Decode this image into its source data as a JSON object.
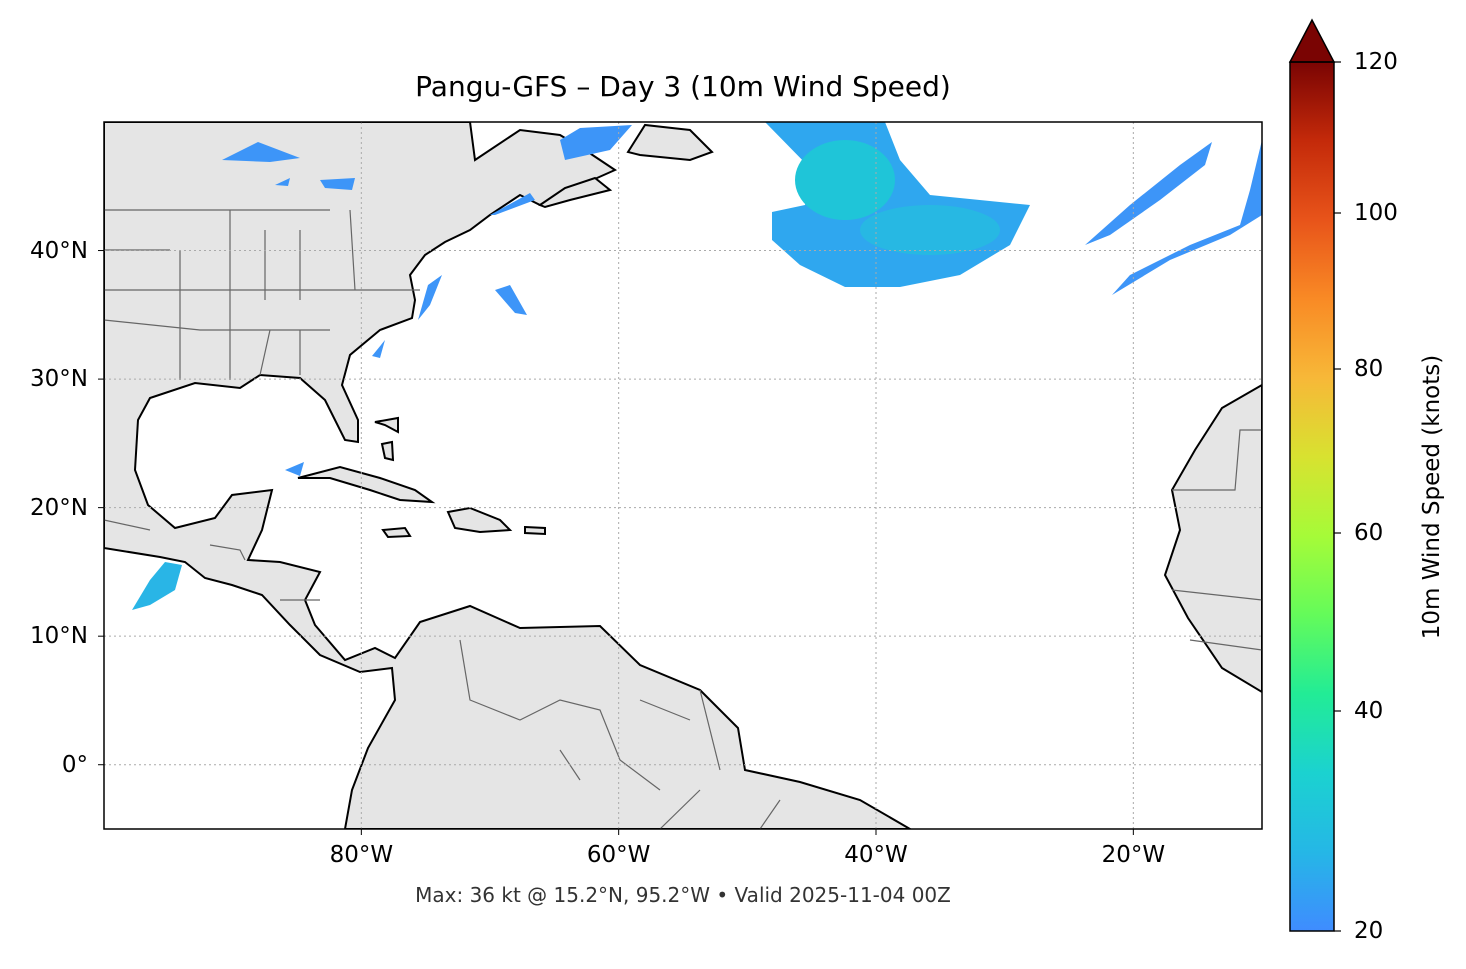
{
  "title": "Pangu-GFS – Day 3 (10m Wind Speed)",
  "footer": "Max: 36 kt @ 15.2°N, 95.2°W • Valid 2025-11-04 00Z",
  "map": {
    "extent": {
      "lon": [
        -100,
        -10
      ],
      "lat": [
        -5,
        50
      ]
    },
    "x_ticks": [
      {
        "lon": -80,
        "label": "80°W"
      },
      {
        "lon": -60,
        "label": "60°W"
      },
      {
        "lon": -40,
        "label": "40°W"
      },
      {
        "lon": -20,
        "label": "20°W"
      }
    ],
    "y_ticks": [
      {
        "lat": 40,
        "label": "40°N"
      },
      {
        "lat": 30,
        "label": "30°N"
      },
      {
        "lat": 20,
        "label": "20°N"
      },
      {
        "lat": 10,
        "label": "10°N"
      },
      {
        "lat": 0,
        "label": "0°"
      }
    ],
    "gridlines": true,
    "land_color": "#e5e5e5",
    "wind_color": "#3d95f8",
    "max_point": {
      "lat": 15.2,
      "lon": -95.2,
      "value_kt": 36
    }
  },
  "colorbar": {
    "label": "10m Wind Speed (knots)",
    "range": [
      20,
      120
    ],
    "extend": "max",
    "ticks": [
      {
        "value": 20,
        "label": "20"
      },
      {
        "value": 40,
        "label": "40"
      },
      {
        "value": 60,
        "label": "60"
      },
      {
        "value": 80,
        "label": "80"
      },
      {
        "value": 100,
        "label": "100"
      },
      {
        "value": 120,
        "label": "120"
      }
    ],
    "colors": [
      "#3f8cff",
      "#25b7e6",
      "#1bd2d0",
      "#22ec96",
      "#64fb5a",
      "#a6fb38",
      "#d8e230",
      "#f7b838",
      "#f98a25",
      "#e8541a",
      "#c42a0a",
      "#7a0403"
    ]
  }
}
